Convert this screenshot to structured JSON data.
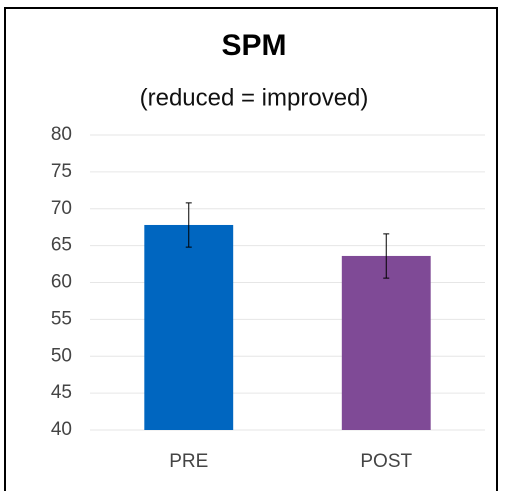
{
  "chart_data": {
    "type": "bar",
    "title": "SPM",
    "subtitle": "(reduced = improved)",
    "categories": [
      "PRE",
      "POST"
    ],
    "values": [
      67.8,
      63.6
    ],
    "errors": [
      3.0,
      3.0
    ],
    "colors": [
      "#0066c0",
      "#7f4a96"
    ],
    "ylim": [
      40,
      80
    ],
    "yticks": [
      40,
      45,
      50,
      55,
      60,
      65,
      70,
      75,
      80
    ],
    "grid": true
  }
}
